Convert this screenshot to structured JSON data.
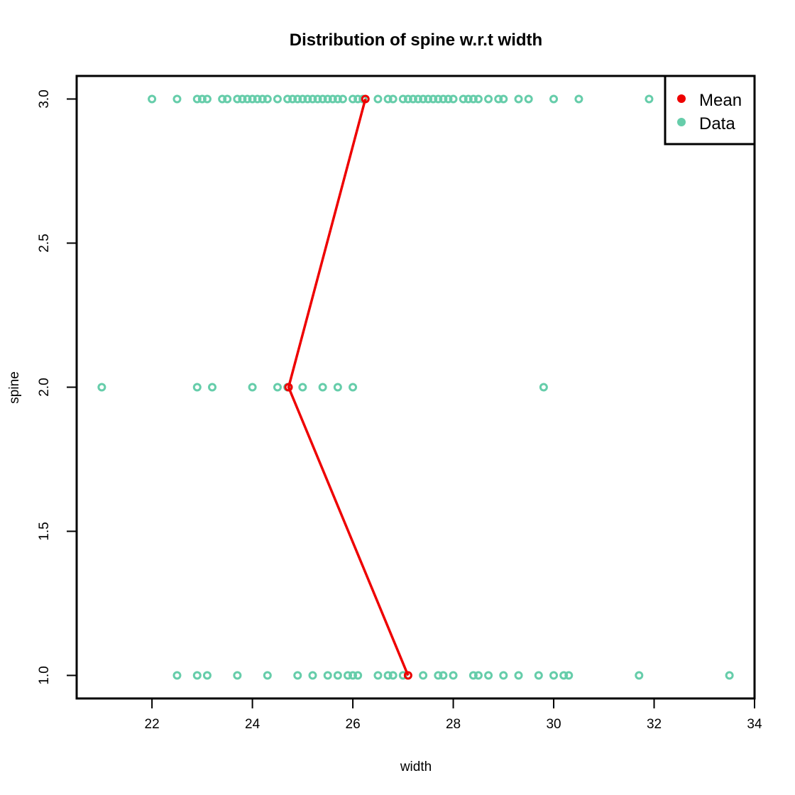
{
  "colors": {
    "mean": "#EE0000",
    "data": "#66CDAA",
    "frame": "#000000"
  },
  "chart_data": {
    "type": "scatter",
    "title": "Distribution of spine w.r.t width",
    "xlabel": "width",
    "ylabel": "spine",
    "xlim": [
      20.5,
      34
    ],
    "ylim": [
      0.92,
      3.08
    ],
    "x_ticks": [
      22,
      24,
      26,
      28,
      30,
      32,
      34
    ],
    "x_tick_labels": [
      "22",
      "24",
      "26",
      "28",
      "30",
      "32",
      "34"
    ],
    "y_ticks": [
      1.0,
      1.5,
      2.0,
      2.5,
      3.0
    ],
    "y_tick_labels": [
      "1.0",
      "1.5",
      "2.0",
      "2.5",
      "3.0"
    ],
    "grid": false,
    "legend_position": "top-right",
    "legend": [
      {
        "label": "Mean",
        "series": "mean"
      },
      {
        "label": "Data",
        "series": "data"
      }
    ],
    "series": [
      {
        "name": "Data",
        "key": "data",
        "points": [
          {
            "x": 22.0,
            "y": 3
          },
          {
            "x": 22.5,
            "y": 3
          },
          {
            "x": 22.9,
            "y": 3
          },
          {
            "x": 23.0,
            "y": 3
          },
          {
            "x": 23.1,
            "y": 3
          },
          {
            "x": 23.4,
            "y": 3
          },
          {
            "x": 23.5,
            "y": 3
          },
          {
            "x": 23.7,
            "y": 3
          },
          {
            "x": 23.8,
            "y": 3
          },
          {
            "x": 23.9,
            "y": 3
          },
          {
            "x": 24.0,
            "y": 3
          },
          {
            "x": 24.1,
            "y": 3
          },
          {
            "x": 24.2,
            "y": 3
          },
          {
            "x": 24.3,
            "y": 3
          },
          {
            "x": 24.5,
            "y": 3
          },
          {
            "x": 24.7,
            "y": 3
          },
          {
            "x": 24.8,
            "y": 3
          },
          {
            "x": 24.9,
            "y": 3
          },
          {
            "x": 25.0,
            "y": 3
          },
          {
            "x": 25.1,
            "y": 3
          },
          {
            "x": 25.2,
            "y": 3
          },
          {
            "x": 25.3,
            "y": 3
          },
          {
            "x": 25.4,
            "y": 3
          },
          {
            "x": 25.5,
            "y": 3
          },
          {
            "x": 25.6,
            "y": 3
          },
          {
            "x": 25.7,
            "y": 3
          },
          {
            "x": 25.8,
            "y": 3
          },
          {
            "x": 26.0,
            "y": 3
          },
          {
            "x": 26.1,
            "y": 3
          },
          {
            "x": 26.2,
            "y": 3
          },
          {
            "x": 26.5,
            "y": 3
          },
          {
            "x": 26.7,
            "y": 3
          },
          {
            "x": 26.8,
            "y": 3
          },
          {
            "x": 27.0,
            "y": 3
          },
          {
            "x": 27.1,
            "y": 3
          },
          {
            "x": 27.2,
            "y": 3
          },
          {
            "x": 27.3,
            "y": 3
          },
          {
            "x": 27.4,
            "y": 3
          },
          {
            "x": 27.5,
            "y": 3
          },
          {
            "x": 27.6,
            "y": 3
          },
          {
            "x": 27.7,
            "y": 3
          },
          {
            "x": 27.8,
            "y": 3
          },
          {
            "x": 27.9,
            "y": 3
          },
          {
            "x": 28.0,
            "y": 3
          },
          {
            "x": 28.2,
            "y": 3
          },
          {
            "x": 28.3,
            "y": 3
          },
          {
            "x": 28.4,
            "y": 3
          },
          {
            "x": 28.5,
            "y": 3
          },
          {
            "x": 28.7,
            "y": 3
          },
          {
            "x": 28.9,
            "y": 3
          },
          {
            "x": 29.0,
            "y": 3
          },
          {
            "x": 29.3,
            "y": 3
          },
          {
            "x": 29.5,
            "y": 3
          },
          {
            "x": 30.0,
            "y": 3
          },
          {
            "x": 30.5,
            "y": 3
          },
          {
            "x": 31.9,
            "y": 3
          },
          {
            "x": 21.0,
            "y": 2
          },
          {
            "x": 22.9,
            "y": 2
          },
          {
            "x": 23.2,
            "y": 2
          },
          {
            "x": 24.0,
            "y": 2
          },
          {
            "x": 24.5,
            "y": 2
          },
          {
            "x": 24.7,
            "y": 2
          },
          {
            "x": 25.0,
            "y": 2
          },
          {
            "x": 25.4,
            "y": 2
          },
          {
            "x": 25.7,
            "y": 2
          },
          {
            "x": 26.0,
            "y": 2
          },
          {
            "x": 29.8,
            "y": 2
          },
          {
            "x": 22.5,
            "y": 1
          },
          {
            "x": 22.9,
            "y": 1
          },
          {
            "x": 23.1,
            "y": 1
          },
          {
            "x": 23.7,
            "y": 1
          },
          {
            "x": 24.3,
            "y": 1
          },
          {
            "x": 24.9,
            "y": 1
          },
          {
            "x": 25.2,
            "y": 1
          },
          {
            "x": 25.5,
            "y": 1
          },
          {
            "x": 25.7,
            "y": 1
          },
          {
            "x": 25.9,
            "y": 1
          },
          {
            "x": 26.0,
            "y": 1
          },
          {
            "x": 26.1,
            "y": 1
          },
          {
            "x": 26.5,
            "y": 1
          },
          {
            "x": 26.7,
            "y": 1
          },
          {
            "x": 26.8,
            "y": 1
          },
          {
            "x": 27.0,
            "y": 1
          },
          {
            "x": 27.1,
            "y": 1
          },
          {
            "x": 27.4,
            "y": 1
          },
          {
            "x": 27.7,
            "y": 1
          },
          {
            "x": 27.8,
            "y": 1
          },
          {
            "x": 28.0,
            "y": 1
          },
          {
            "x": 28.4,
            "y": 1
          },
          {
            "x": 28.5,
            "y": 1
          },
          {
            "x": 28.7,
            "y": 1
          },
          {
            "x": 29.0,
            "y": 1
          },
          {
            "x": 29.3,
            "y": 1
          },
          {
            "x": 29.7,
            "y": 1
          },
          {
            "x": 30.0,
            "y": 1
          },
          {
            "x": 30.2,
            "y": 1
          },
          {
            "x": 30.3,
            "y": 1
          },
          {
            "x": 31.7,
            "y": 1
          },
          {
            "x": 33.5,
            "y": 1
          }
        ]
      },
      {
        "name": "Mean",
        "key": "mean",
        "line": true,
        "points": [
          {
            "x": 26.25,
            "y": 3
          },
          {
            "x": 24.72,
            "y": 2
          },
          {
            "x": 27.1,
            "y": 1
          }
        ]
      }
    ]
  }
}
